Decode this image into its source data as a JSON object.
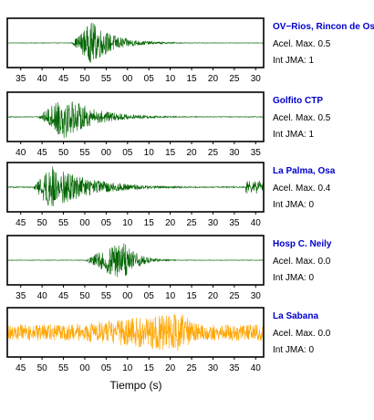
{
  "chart_data": {
    "type": "line",
    "xlabel": "Tiempo (s)",
    "colors": {
      "name": "#0000cc",
      "trace_normal": "#006400",
      "trace_alert": "#ffa500",
      "axis": "#000000"
    },
    "panels": [
      {
        "station": "OV−Rios, Rincon de Os",
        "acel_text": "Acel. Max. 0.5",
        "int_text": "Int JMA: 1",
        "trace_color": "#006400",
        "ticks": [
          "35",
          "40",
          "45",
          "50",
          "55",
          "00",
          "05",
          "10",
          "15",
          "20",
          "25",
          "30"
        ],
        "burst": {
          "start": 0.25,
          "peak": 0.33,
          "end": 0.72,
          "amplitude": 0.9,
          "noise": 0.01
        }
      },
      {
        "station": "Golfito CTP",
        "acel_text": "Acel. Max. 0.5",
        "int_text": "Int JMA: 1",
        "trace_color": "#006400",
        "ticks": [
          "40",
          "45",
          "50",
          "55",
          "00",
          "05",
          "10",
          "15",
          "20",
          "25",
          "30",
          "35"
        ],
        "burst": {
          "start": 0.12,
          "peak": 0.22,
          "end": 0.75,
          "amplitude": 0.95,
          "noise": 0.015
        }
      },
      {
        "station": "La Palma, Osa",
        "acel_text": "Acel. Max. 0.4",
        "int_text": "Int JMA: 0",
        "trace_color": "#006400",
        "ticks": [
          "45",
          "50",
          "55",
          "00",
          "05",
          "10",
          "15",
          "20",
          "25",
          "30",
          "35",
          "40"
        ],
        "burst": {
          "start": 0.1,
          "peak": 0.17,
          "end": 0.85,
          "amplitude": 0.95,
          "noise": 0.02
        }
      },
      {
        "station": "Hosp C. Neily",
        "acel_text": "Acel. Max. 0.0",
        "int_text": "Int JMA: 0",
        "trace_color": "#006400",
        "ticks": [
          "35",
          "40",
          "45",
          "50",
          "55",
          "00",
          "05",
          "10",
          "15",
          "20",
          "25",
          "30"
        ],
        "burst": {
          "start": 0.3,
          "peak": 0.45,
          "end": 0.68,
          "amplitude": 0.9,
          "noise": 0.01
        }
      },
      {
        "station": "La Sabana",
        "acel_text": "Acel. Max. 0.0",
        "int_text": "Int JMA: 0",
        "trace_color": "#ffa500",
        "ticks": [
          "45",
          "50",
          "55",
          "00",
          "05",
          "10",
          "15",
          "20",
          "25",
          "30",
          "35",
          "40"
        ],
        "burst": {
          "start": 0.0,
          "peak": 0.68,
          "end": 1.0,
          "amplitude": 0.85,
          "noise": 0.35
        }
      }
    ]
  }
}
